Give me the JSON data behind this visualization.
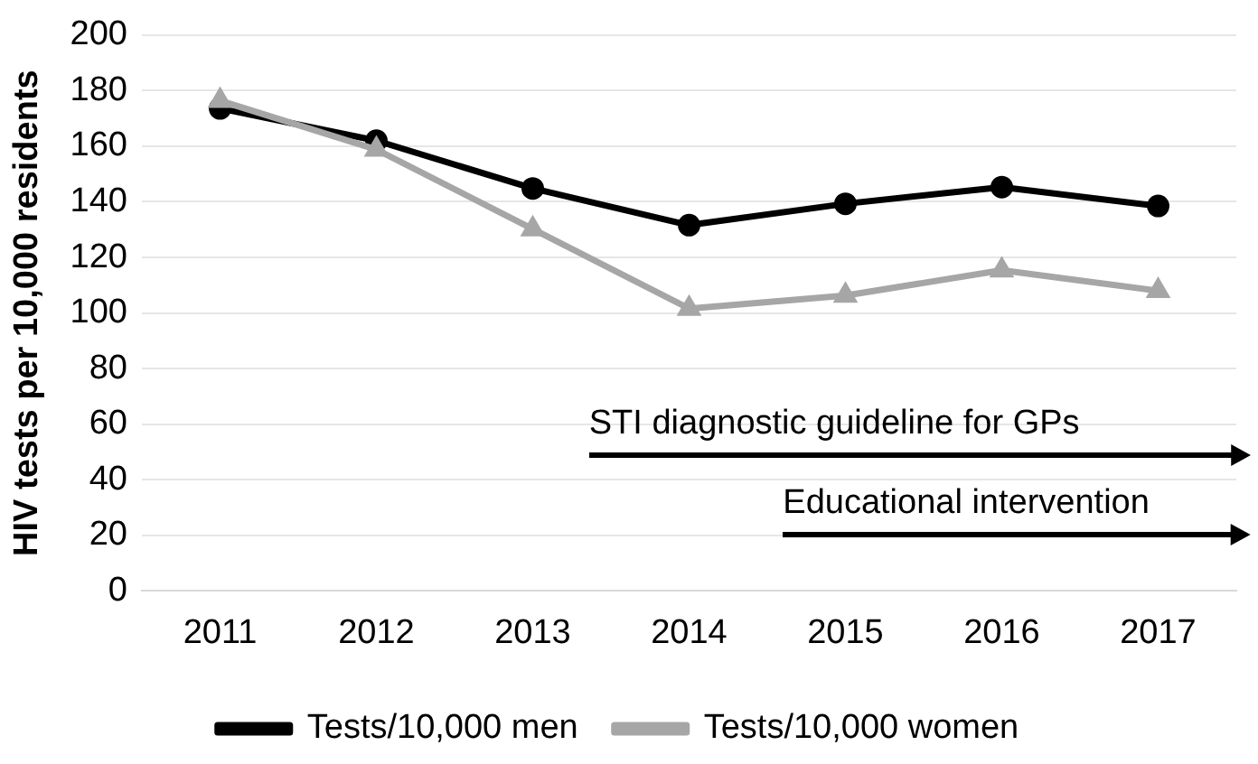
{
  "chart_data": {
    "type": "line",
    "ylabel": "HIV tests per 10,000 residents",
    "categories": [
      "2011",
      "2012",
      "2013",
      "2014",
      "2015",
      "2016",
      "2017"
    ],
    "series": [
      {
        "name": "Tests/10,000 men",
        "color": "#000000",
        "marker": "circle",
        "values": [
          173.6,
          162,
          144.8,
          131.6,
          139.3,
          145.3,
          138.5
        ]
      },
      {
        "name": "Tests/10,000 women",
        "color": "#a6a6a6",
        "marker": "triangle",
        "values": [
          176.4,
          158.8,
          130.2,
          101.6,
          106.3,
          115.4,
          108
        ]
      }
    ],
    "ylim": [
      0,
      200
    ],
    "yticks": [
      0,
      20,
      40,
      60,
      80,
      100,
      120,
      140,
      160,
      180,
      200
    ],
    "grid": "y",
    "legend": "bottom",
    "annotations": [
      "STI diagnostic guideline for GPs",
      "Educational intervention"
    ]
  }
}
